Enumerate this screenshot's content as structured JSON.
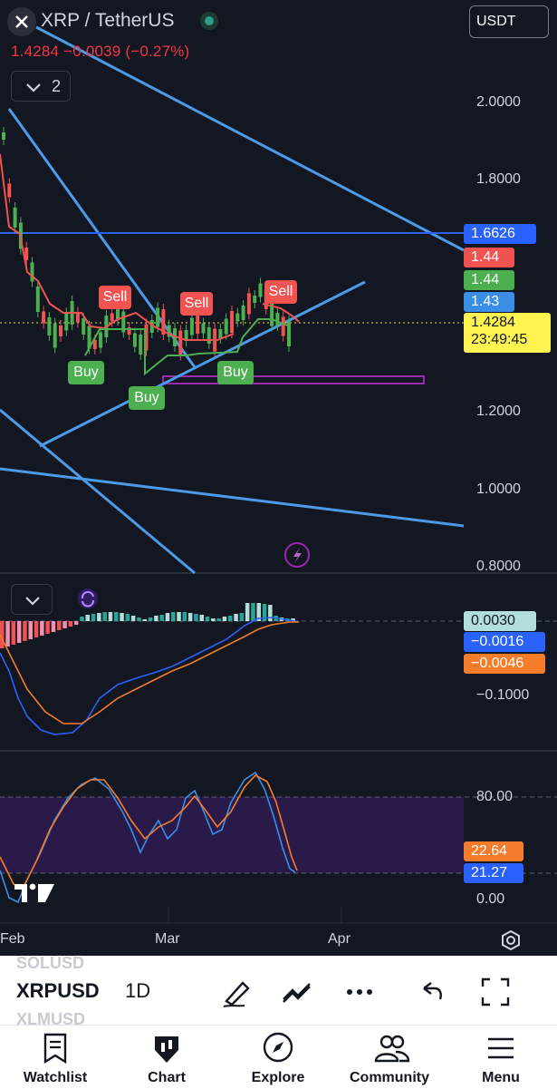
{
  "header": {
    "title": "XRP / TetherUS",
    "quote": "1.4284 −0.0039 (−0.27%)",
    "currency": "USDT",
    "indicator_count": "2"
  },
  "price_axis": {
    "ticks": [
      "2.0000",
      "1.8000",
      "1.2000",
      "1.0000",
      "0.8000"
    ],
    "labels": [
      {
        "text": "1.6626",
        "bg": "#2962ff",
        "fg": "#ffffff"
      },
      {
        "text": "1.44",
        "bg": "#f05350",
        "fg": "#ffffff"
      },
      {
        "text": "1.44",
        "bg": "#4caf50",
        "fg": "#ffffff"
      },
      {
        "text": "1.43",
        "bg": "#3a8ee6",
        "fg": "#ffffff"
      },
      {
        "text": "1.4284",
        "bg": "#fff44f",
        "fg": "#131722"
      }
    ],
    "countdown": "23:49:45"
  },
  "signals": [
    {
      "type": "Sell"
    },
    {
      "type": "Sell"
    },
    {
      "type": "Sell"
    },
    {
      "type": "Buy"
    },
    {
      "type": "Buy"
    },
    {
      "type": "Buy"
    }
  ],
  "macd": {
    "tick": "−0.1000",
    "labels": [
      {
        "text": "0.0030",
        "bg": "#b2dfdb",
        "fg": "#131722"
      },
      {
        "text": "−0.0016",
        "bg": "#2962ff",
        "fg": "#ffffff"
      },
      {
        "text": "−0.0046",
        "bg": "#f57c2a",
        "fg": "#ffffff"
      }
    ]
  },
  "stoch": {
    "ticks": [
      "80.00",
      "0.00"
    ],
    "labels": [
      {
        "text": "22.64",
        "bg": "#f57c2a",
        "fg": "#ffffff"
      },
      {
        "text": "21.27",
        "bg": "#2962ff",
        "fg": "#ffffff"
      }
    ]
  },
  "time_axis": [
    "Feb",
    "Mar",
    "Apr"
  ],
  "toolbar": {
    "symbol": "XRPUSD",
    "symbol_above": "SOLUSD",
    "symbol_below": "XLMUSD",
    "timeframe": "1D"
  },
  "tabs": [
    "Watchlist",
    "Chart",
    "Explore",
    "Community",
    "Menu"
  ],
  "colors": {
    "background": "#131722",
    "bull": "#4caf50",
    "bear": "#f05350",
    "trendline": "#4c9be8",
    "accent": "#2962ff"
  }
}
